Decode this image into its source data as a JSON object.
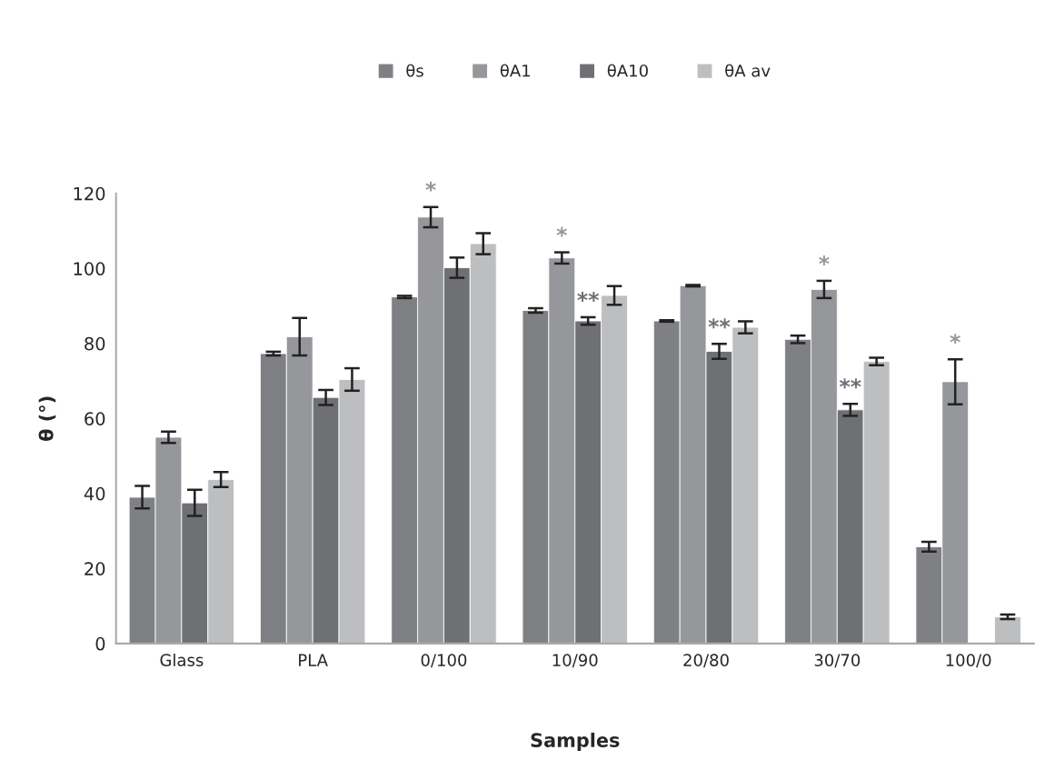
{
  "chart_data": {
    "type": "bar",
    "xlabel": "Samples",
    "ylabel": "θ (°)",
    "categories": [
      "Glass",
      "PLA",
      "0/100",
      "10/90",
      "20/80",
      "30/70",
      "100/0"
    ],
    "series": [
      {
        "name": "θs",
        "color": "#7f8084",
        "values": [
          39,
          77.3,
          92.4,
          88.8,
          86,
          81.1,
          25.8
        ],
        "errors": [
          3,
          0.5,
          0.3,
          0.6,
          0.2,
          1,
          1.3
        ]
      },
      {
        "name": "θA1",
        "color": "#96979b",
        "values": [
          55,
          81.8,
          113.7,
          102.8,
          95.4,
          94.4,
          69.8
        ],
        "errors": [
          1.5,
          5,
          2.7,
          1.5,
          0.2,
          2.3,
          6
        ],
        "value_labels": [
          null,
          null,
          "*",
          "*",
          null,
          "*",
          "*"
        ]
      },
      {
        "name": "θA10",
        "color": "#6f7074",
        "values": [
          37.5,
          65.6,
          100.2,
          86,
          77.9,
          62.3,
          0.2
        ],
        "errors": [
          3.5,
          2,
          2.7,
          1,
          2,
          1.6,
          null
        ],
        "value_labels": [
          null,
          null,
          null,
          "**",
          "**",
          "**",
          null
        ]
      },
      {
        "name": "θA av",
        "color": "#bdbec0",
        "values": [
          43.7,
          70.4,
          106.6,
          92.8,
          84.3,
          75.2,
          7.1
        ],
        "errors": [
          2,
          3,
          2.8,
          2.5,
          1.6,
          1,
          0.6
        ]
      }
    ],
    "ylim": [
      0,
      120
    ],
    "yticks": [
      0,
      20,
      40,
      60,
      80,
      100,
      120
    ],
    "grid": false,
    "legend": "top"
  }
}
